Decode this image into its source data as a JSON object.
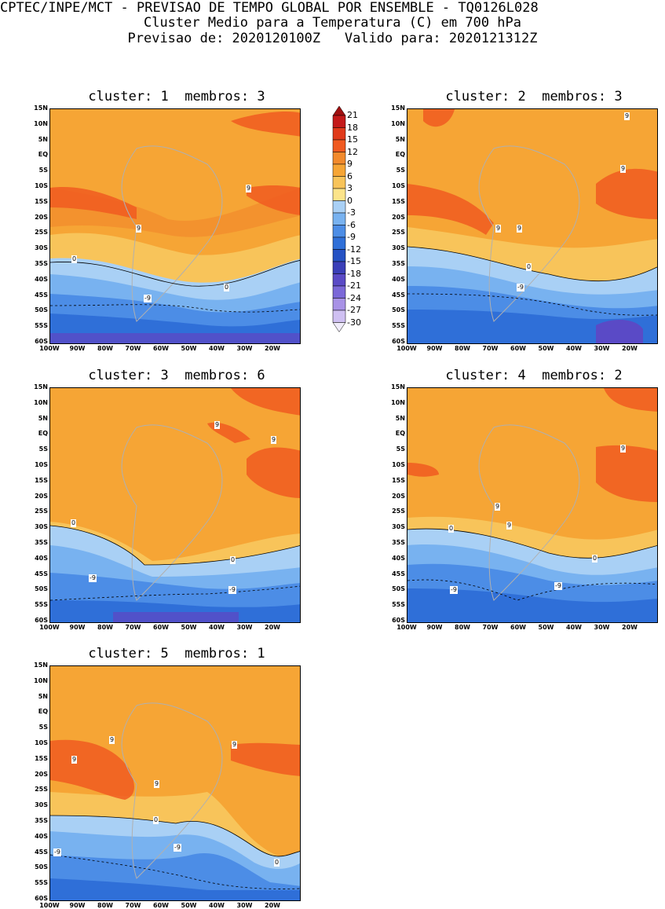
{
  "header": {
    "line1": "CPTEC/INPE/MCT - PREVISAO DE TEMPO GLOBAL POR ENSEMBLE - TQ0126L028",
    "line2": "Cluster Medio para a Temperatura (C) em 700 hPa",
    "line3": "Previsao de: 2020120100Z   Valido para: 2020121312Z"
  },
  "panels": [
    {
      "title": "cluster: 1  membros: 3"
    },
    {
      "title": "cluster: 2  membros: 3"
    },
    {
      "title": "cluster: 3  membros: 6"
    },
    {
      "title": "cluster: 4  membros: 2"
    },
    {
      "title": "cluster: 5  membros: 1"
    }
  ],
  "lat_labels": [
    "15N",
    "10N",
    "5N",
    "EQ",
    "5S",
    "10S",
    "15S",
    "20S",
    "25S",
    "30S",
    "35S",
    "40S",
    "45S",
    "50S",
    "55S",
    "60S"
  ],
  "lon_labels": [
    "100W",
    "90W",
    "80W",
    "70W",
    "60W",
    "50W",
    "40W",
    "30W",
    "20W"
  ],
  "colorbar": {
    "labels": [
      "21",
      "18",
      "15",
      "12",
      "9",
      "6",
      "3",
      "0",
      "-3",
      "-6",
      "-9",
      "-12",
      "-15",
      "-18",
      "-21",
      "-24",
      "-27",
      "-30"
    ],
    "colors": [
      "#a01010",
      "#c41a1a",
      "#e03a1a",
      "#f05a20",
      "#f28a2c",
      "#f6a535",
      "#f8c45a",
      "#fce48a",
      "#a9d0f5",
      "#78b2f0",
      "#4c8de6",
      "#2f6fd8",
      "#2552c4",
      "#3a3fb8",
      "#5a4ac6",
      "#7b68d8",
      "#a892e6",
      "#cfc0f2",
      "#f0ecfa"
    ]
  },
  "contour_labels": {
    "p1": [
      "9",
      "9",
      "0",
      "0",
      "-9"
    ],
    "p2": [
      "9",
      "9",
      "9",
      "9",
      "0",
      "-9"
    ],
    "p3": [
      "9",
      "9",
      "0",
      "0",
      "-9",
      "-9"
    ],
    "p4": [
      "9",
      "9",
      "9",
      "0",
      "0",
      "-9",
      "-9"
    ],
    "p5": [
      "9",
      "9",
      "9",
      "9",
      "0",
      "0",
      "-9",
      "-9"
    ]
  }
}
